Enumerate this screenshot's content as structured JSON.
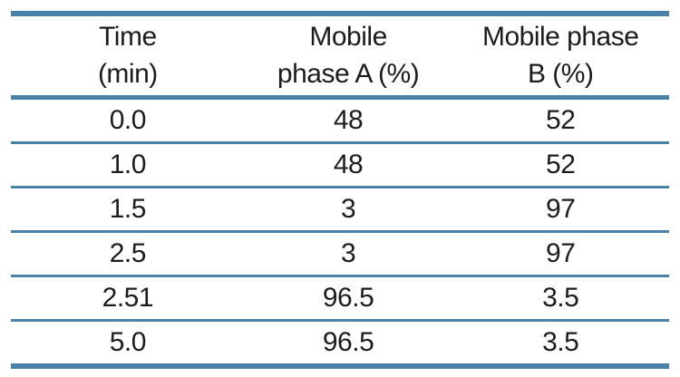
{
  "table": {
    "headers": [
      {
        "line1": "Time",
        "line2": "(min)"
      },
      {
        "line1": "Mobile",
        "line2": "phase A (%)"
      },
      {
        "line1": "Mobile phase",
        "line2": "B (%)"
      }
    ],
    "rows": [
      [
        "0.0",
        "48",
        "52"
      ],
      [
        "1.0",
        "48",
        "52"
      ],
      [
        "1.5",
        "3",
        "97"
      ],
      [
        "2.5",
        "3",
        "97"
      ],
      [
        "2.51",
        "96.5",
        "3.5"
      ],
      [
        "5.0",
        "96.5",
        "3.5"
      ]
    ]
  },
  "colors": {
    "rule_blue": "#4a81a6",
    "text": "#1c1c1c",
    "background": "#ffffff"
  },
  "chart_data": {
    "type": "table",
    "title": "",
    "columns": [
      "Time (min)",
      "Mobile phase A (%)",
      "Mobile phase B (%)"
    ],
    "rows": [
      [
        0.0,
        48,
        52
      ],
      [
        1.0,
        48,
        52
      ],
      [
        1.5,
        3,
        97
      ],
      [
        2.5,
        3,
        97
      ],
      [
        2.51,
        96.5,
        3.5
      ],
      [
        5.0,
        96.5,
        3.5
      ]
    ]
  }
}
